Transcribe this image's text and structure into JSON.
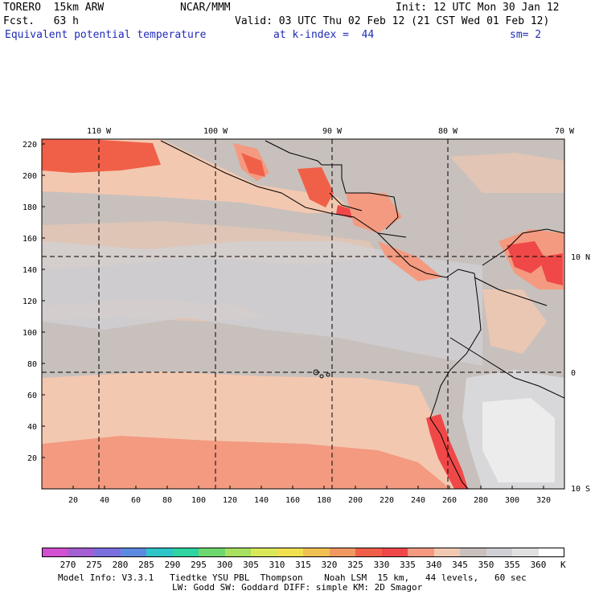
{
  "header": {
    "model": "TORERO  15km ARW",
    "org": "NCAR/MMM",
    "init": "Init: 12 UTC Mon 30 Jan 12",
    "fcst": "Fcst.   63 h",
    "valid": "Valid: 03 UTC Thu 02 Feb 12 (21 CST Wed 01 Feb 12)",
    "field": "Equivalent potential temperature",
    "kindex": "at k-index =  44",
    "sm": "sm= 2"
  },
  "map": {
    "lon_labels": [
      "110 W",
      "100 W",
      "90 W",
      "80 W",
      "70 W"
    ],
    "lat_labels": [
      "10 N",
      "0",
      "10 S"
    ],
    "y_ticks": [
      "220",
      "200",
      "180",
      "160",
      "140",
      "120",
      "100",
      "80",
      "60",
      "40",
      "20"
    ],
    "x_ticks": [
      "20",
      "40",
      "60",
      "80",
      "100",
      "120",
      "140",
      "160",
      "180",
      "200",
      "220",
      "240",
      "260",
      "280",
      "300",
      "320"
    ]
  },
  "colorbar": {
    "unit": "K",
    "labels": [
      "270",
      "275",
      "280",
      "285",
      "290",
      "295",
      "300",
      "305",
      "310",
      "315",
      "320",
      "325",
      "330",
      "335",
      "340",
      "345",
      "350",
      "355",
      "360"
    ],
    "colors": [
      "#d24fd2",
      "#a25ed2",
      "#7b6fe0",
      "#5c8ae0",
      "#2fc4c8",
      "#2fd4a0",
      "#6ed86e",
      "#a8e060",
      "#d8e858",
      "#f2e050",
      "#f0c050",
      "#f09860",
      "#f06048",
      "#f04848",
      "#f39a80",
      "#f3c8b0",
      "#c8c0bc",
      "#d0d0d4",
      "#e0e0e0",
      "#ffffff"
    ]
  },
  "footer": {
    "line1": "Model Info: V3.3.1   Tiedtke YSU PBL  Thompson    Noah LSM  15 km,   44 levels,   60 sec",
    "line2": "LW: Godd SW: Goddard DIFF: simple KM: 2D Smagor"
  }
}
